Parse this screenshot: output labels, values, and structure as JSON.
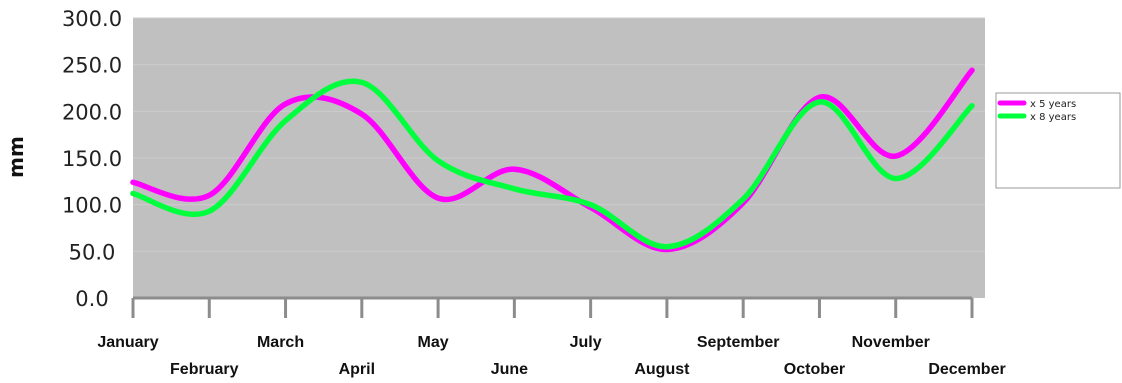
{
  "chart_data": {
    "type": "line",
    "ylabel": "mm",
    "xlabel": "",
    "ylim": [
      0,
      300
    ],
    "ytick_labels": [
      "0.0",
      "50.0",
      "100.0",
      "150.0",
      "200.0",
      "250.0",
      "300.0"
    ],
    "categories": [
      "January",
      "February",
      "March",
      "April",
      "May",
      "June",
      "July",
      "August",
      "September",
      "October",
      "November",
      "December"
    ],
    "grid": false,
    "legend_position": "right",
    "plot_background": "#c0c0c0",
    "series": [
      {
        "name": "x 5 years",
        "color": "#ff00ff",
        "values": [
          124,
          110,
          208,
          197,
          107,
          138,
          97,
          52,
          102,
          215,
          152,
          244
        ]
      },
      {
        "name": "x 8 years",
        "color": "#00ff3c",
        "values": [
          112,
          93,
          190,
          231,
          147,
          117,
          100,
          55,
          106,
          210,
          128,
          206
        ]
      }
    ]
  }
}
